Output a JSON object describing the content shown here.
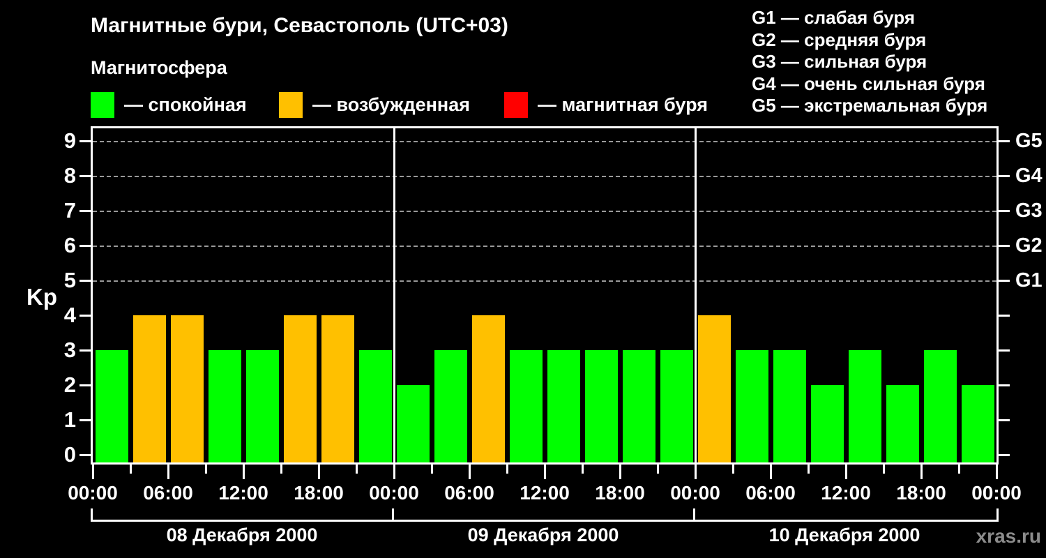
{
  "title": "Магнитные бури, Севастополь (UTC+03)",
  "watermark": "xras.ru",
  "magnetosphere_legend": {
    "title": "Магнитосфера",
    "items": [
      {
        "id": "quiet",
        "label": "— спокойная",
        "color": "#00ff00"
      },
      {
        "id": "excited",
        "label": "— возбужденная",
        "color": "#ffc000"
      },
      {
        "id": "storm",
        "label": "— магнитная буря",
        "color": "#ff0000"
      }
    ]
  },
  "storm_scale_legend": [
    "G1 — слабая буря",
    "G2 — средняя буря",
    "G3 — сильная буря",
    "G4 — очень сильная буря",
    "G5 — экстремальная буря"
  ],
  "chart_data": {
    "type": "bar",
    "title": "Магнитные бури, Севастополь (UTC+03)",
    "ylabel": "Kp",
    "ylim": [
      0,
      9.4
    ],
    "yticks": [
      0,
      1,
      2,
      3,
      4,
      5,
      6,
      7,
      8,
      9
    ],
    "grid_dashed_at_kp": [
      5,
      6,
      7,
      8,
      9
    ],
    "right_axis": [
      {
        "label": "G1",
        "kp": 5
      },
      {
        "label": "G2",
        "kp": 6
      },
      {
        "label": "G3",
        "kp": 7
      },
      {
        "label": "G4",
        "kp": 8
      },
      {
        "label": "G5",
        "kp": 9
      }
    ],
    "hours_per_bar": 3,
    "x_labels": [
      "00:00",
      "06:00",
      "12:00",
      "18:00",
      "00:00",
      "06:00",
      "12:00",
      "18:00",
      "00:00",
      "06:00",
      "12:00",
      "18:00",
      "00:00"
    ],
    "state_colors": {
      "quiet": "#00ff00",
      "excited": "#ffc000",
      "storm": "#ff0000"
    },
    "days": [
      {
        "date": "08 Декабря 2000",
        "bars": [
          {
            "kp": 3,
            "state": "quiet"
          },
          {
            "kp": 4,
            "state": "excited"
          },
          {
            "kp": 4,
            "state": "excited"
          },
          {
            "kp": 3,
            "state": "quiet"
          },
          {
            "kp": 3,
            "state": "quiet"
          },
          {
            "kp": 4,
            "state": "excited"
          },
          {
            "kp": 4,
            "state": "excited"
          },
          {
            "kp": 3,
            "state": "quiet"
          }
        ]
      },
      {
        "date": "09 Декабря 2000",
        "bars": [
          {
            "kp": 2,
            "state": "quiet"
          },
          {
            "kp": 3,
            "state": "quiet"
          },
          {
            "kp": 4,
            "state": "excited"
          },
          {
            "kp": 3,
            "state": "quiet"
          },
          {
            "kp": 3,
            "state": "quiet"
          },
          {
            "kp": 3,
            "state": "quiet"
          },
          {
            "kp": 3,
            "state": "quiet"
          },
          {
            "kp": 3,
            "state": "quiet"
          }
        ]
      },
      {
        "date": "10 Декабря 2000",
        "bars": [
          {
            "kp": 4,
            "state": "excited"
          },
          {
            "kp": 3,
            "state": "quiet"
          },
          {
            "kp": 3,
            "state": "quiet"
          },
          {
            "kp": 2,
            "state": "quiet"
          },
          {
            "kp": 3,
            "state": "quiet"
          },
          {
            "kp": 2,
            "state": "quiet"
          },
          {
            "kp": 3,
            "state": "quiet"
          },
          {
            "kp": 2,
            "state": "quiet"
          }
        ]
      }
    ]
  }
}
